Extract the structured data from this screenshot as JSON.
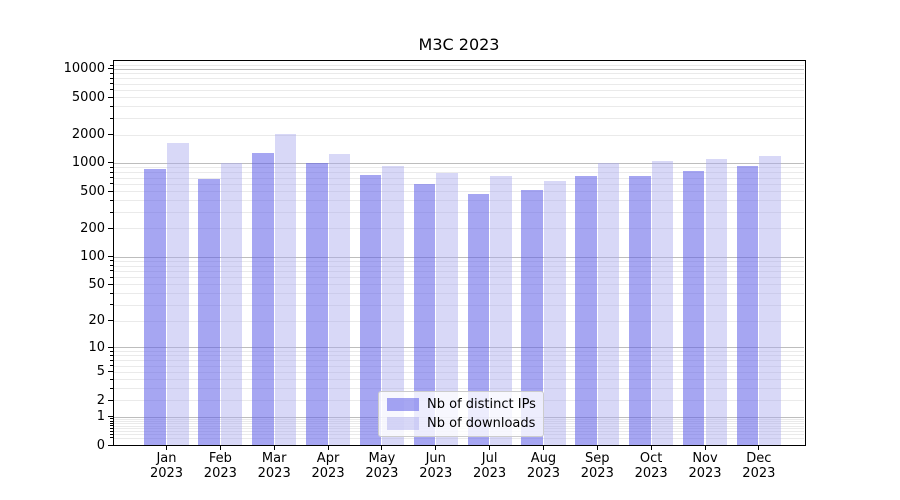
{
  "title": "M3C 2023",
  "colors": {
    "distinct_ips": "rgba(93,93,232,0.55)",
    "downloads": "rgba(168,168,237,0.45)",
    "grid_major": "#bdbdbd",
    "grid_minor": "#eaeaea",
    "spine": "#000000",
    "legend_border": "#cccccc",
    "legend_bg": "rgba(255,255,255,0.8)",
    "text": "#000000"
  },
  "legend": {
    "items": [
      {
        "label": "Nb of distinct IPs",
        "color_key": "distinct_ips"
      },
      {
        "label": "Nb of downloads",
        "color_key": "downloads"
      }
    ]
  },
  "y_axis": {
    "scale": "log10(1+v)",
    "ticks": [
      {
        "label": "10000",
        "value": 10000
      },
      {
        "label": "5000",
        "value": 5000
      },
      {
        "label": "2000",
        "value": 2000
      },
      {
        "label": "1000",
        "value": 1000
      },
      {
        "label": "500",
        "value": 500
      },
      {
        "label": "200",
        "value": 200
      },
      {
        "label": "100",
        "value": 100
      },
      {
        "label": "50",
        "value": 50
      },
      {
        "label": "20",
        "value": 20
      },
      {
        "label": "10",
        "value": 10
      },
      {
        "label": "5",
        "value": 5
      },
      {
        "label": "2",
        "value": 2
      },
      {
        "label": "1",
        "value": 1
      },
      {
        "label": "0",
        "value": 0
      }
    ]
  },
  "x_axis": {
    "months": [
      "Jan",
      "Feb",
      "Mar",
      "Apr",
      "May",
      "Jun",
      "Jul",
      "Aug",
      "Sep",
      "Oct",
      "Nov",
      "Dec"
    ],
    "year": "2023"
  },
  "chart_data": {
    "type": "bar",
    "title": "M3C 2023",
    "xlabel": "",
    "ylabel": "",
    "categories": [
      "Jan 2023",
      "Feb 2023",
      "Mar 2023",
      "Apr 2023",
      "May 2023",
      "Jun 2023",
      "Jul 2023",
      "Aug 2023",
      "Sep 2023",
      "Oct 2023",
      "Nov 2023",
      "Dec 2023"
    ],
    "series": [
      {
        "name": "Nb of distinct IPs",
        "values": [
          855,
          680,
          1280,
          990,
          750,
          595,
          470,
          515,
          730,
          730,
          815,
          935
        ]
      },
      {
        "name": "Nb of downloads",
        "values": [
          1650,
          1005,
          2040,
          1260,
          920,
          775,
          720,
          645,
          1010,
          1040,
          1100,
          1190
        ]
      }
    ],
    "yscale": "log1p",
    "ylim": [
      0,
      12500
    ],
    "y_ticks": [
      0,
      1,
      2,
      5,
      10,
      20,
      50,
      100,
      200,
      500,
      1000,
      2000,
      5000,
      10000
    ],
    "grid": true,
    "legend_position": "lower center"
  }
}
